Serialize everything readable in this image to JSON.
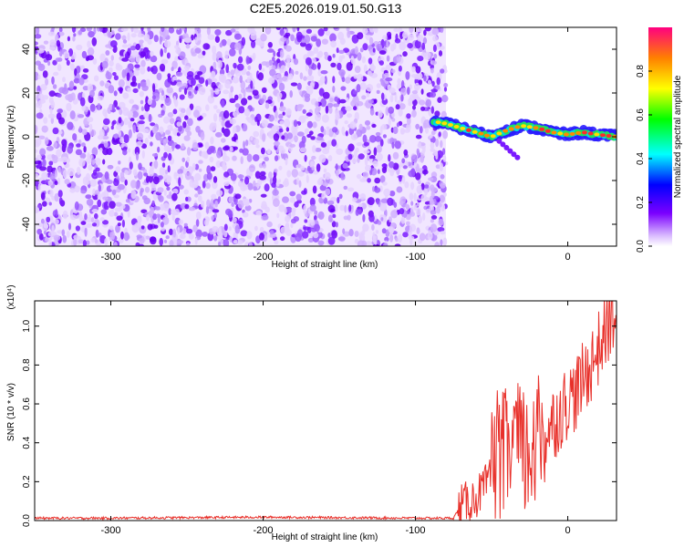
{
  "title": "C2E5.2026.019.01.50.G13",
  "chart_data": [
    {
      "type": "heatmap",
      "title": "C2E5.2026.019.01.50.G13",
      "xlabel": "Height of straight line (km)",
      "ylabel": "Frequency (Hz)",
      "xlim": [
        -350,
        32
      ],
      "ylim": [
        -50,
        50
      ],
      "xticks": [
        -300,
        -200,
        -100,
        0
      ],
      "yticks": [
        -40,
        -20,
        0,
        20,
        40
      ],
      "noise_region_x": [
        -350,
        -80
      ],
      "signal_ridge": {
        "x": [
          -88,
          -80,
          -70,
          -60,
          -50,
          -40,
          -30,
          -20,
          -10,
          0,
          10,
          20,
          32
        ],
        "freq": [
          7,
          6,
          4,
          2,
          0,
          3,
          5,
          4,
          2,
          1,
          2,
          1,
          0
        ]
      },
      "colorbar": {
        "label": "Normalized spectral amplitude",
        "range": [
          0,
          1
        ],
        "ticks": [
          "0.0",
          "0.2",
          "0.4",
          "0.6",
          "0.8"
        ]
      }
    },
    {
      "type": "line",
      "xlabel": "Height of straight line (km)",
      "ylabel": "SNR (10 * v/v)",
      "y_multiplier": "(x10⁴)",
      "xlim": [
        -350,
        32
      ],
      "ylim": [
        0,
        1.13
      ],
      "xticks": [
        -300,
        -200,
        -100,
        0
      ],
      "yticks": [
        "0.0",
        "0.2",
        "0.4",
        "0.6",
        "0.8",
        "1.0"
      ],
      "color": "#e8302a",
      "series": [
        {
          "name": "SNR",
          "x": [
            -350,
            -300,
            -200,
            -100,
            -75,
            -70,
            -60,
            -50,
            -45,
            -40,
            -35,
            -30,
            -25,
            -20,
            -15,
            -10,
            -5,
            0,
            5,
            10,
            15,
            20,
            25,
            32
          ],
          "y": [
            0.01,
            0.01,
            0.015,
            0.01,
            0.01,
            0.08,
            0.12,
            0.22,
            0.28,
            0.35,
            0.38,
            0.36,
            0.3,
            0.4,
            0.45,
            0.5,
            0.55,
            0.62,
            0.65,
            0.72,
            0.8,
            0.88,
            0.98,
            1.08
          ]
        }
      ]
    }
  ]
}
